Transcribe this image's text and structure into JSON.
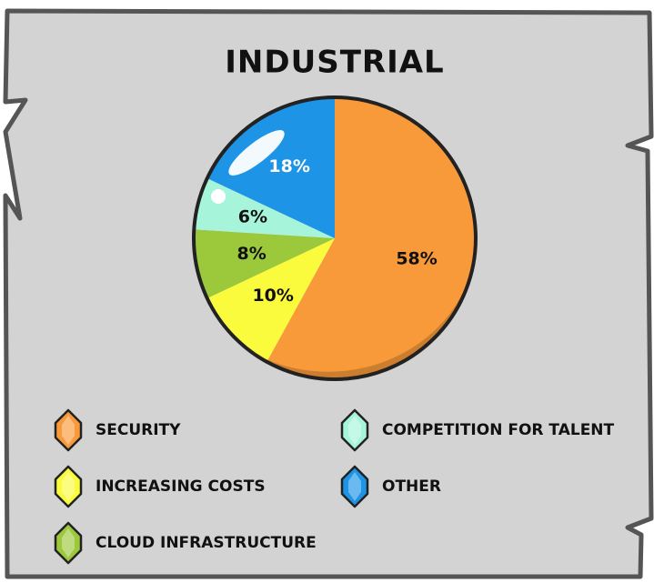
{
  "chart_data": {
    "type": "pie",
    "title": "INDUSTRIAL",
    "categories": [
      "SECURITY",
      "INCREASING COSTS",
      "CLOUD INFRASTRUCTURE",
      "COMPETITION FOR TALENT",
      "OTHER"
    ],
    "values": [
      58,
      10,
      8,
      6,
      18
    ],
    "value_labels": [
      "58%",
      "10%",
      "8%",
      "6%",
      "18%"
    ],
    "colors": [
      "#f99a3a",
      "#fbfb3e",
      "#9cc83b",
      "#a6f5da",
      "#1e94e6"
    ]
  }
}
